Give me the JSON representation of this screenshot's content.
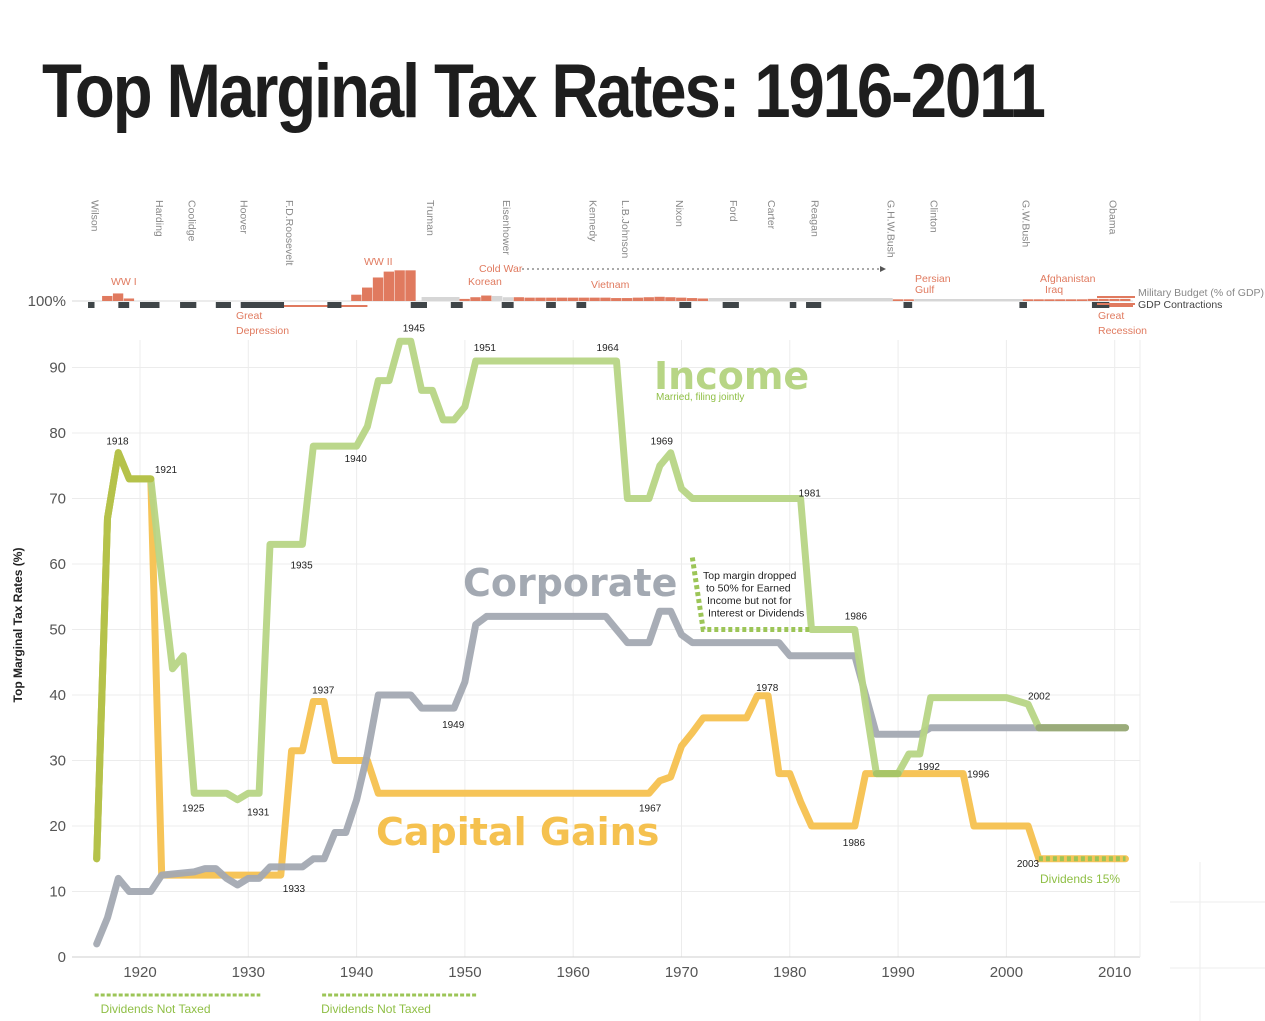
{
  "title": "Top Marginal Tax Rates: 1916-2011",
  "colors": {
    "income": "#b7d585",
    "income_dark": "#a5c55a",
    "corporate": "#a3a9b2",
    "capital_gains": "#f5c14f",
    "military": "#e07a5f",
    "military_gray": "#d6d6d6",
    "gdp": "#3f4548",
    "dividends": "#9cc557"
  },
  "chart_data": {
    "type": "line",
    "title": "Top Marginal Tax Rates: 1916-2011",
    "xlabel": "",
    "ylabel": "Top Marginal Tax Rates (%)",
    "xlim": [
      1915,
      2012
    ],
    "ylim": [
      0,
      100
    ],
    "x_ticks": [
      1920,
      1930,
      1940,
      1950,
      1960,
      1970,
      1980,
      1990,
      2000,
      2010
    ],
    "y_ticks": [
      0,
      10,
      20,
      30,
      40,
      50,
      60,
      70,
      80,
      90
    ],
    "y_top_label": "100%",
    "series": [
      {
        "name": "Income",
        "subtitle": "Married, filing jointly",
        "points": [
          [
            1916,
            15
          ],
          [
            1917,
            67
          ],
          [
            1918,
            77
          ],
          [
            1919,
            73
          ],
          [
            1921,
            73
          ],
          [
            1922,
            58
          ],
          [
            1923,
            44
          ],
          [
            1924,
            46
          ],
          [
            1925,
            25
          ],
          [
            1928,
            25
          ],
          [
            1929,
            24
          ],
          [
            1930,
            25
          ],
          [
            1931,
            25
          ],
          [
            1932,
            63
          ],
          [
            1935,
            63
          ],
          [
            1936,
            78
          ],
          [
            1940,
            78
          ],
          [
            1941,
            81
          ],
          [
            1942,
            88
          ],
          [
            1943,
            88
          ],
          [
            1944,
            94
          ],
          [
            1945,
            94
          ],
          [
            1946,
            86.5
          ],
          [
            1947,
            86.5
          ],
          [
            1948,
            82
          ],
          [
            1949,
            82
          ],
          [
            1950,
            84
          ],
          [
            1951,
            91
          ],
          [
            1964,
            91
          ],
          [
            1965,
            70
          ],
          [
            1967,
            70
          ],
          [
            1968,
            75
          ],
          [
            1969,
            77
          ],
          [
            1970,
            71.5
          ],
          [
            1971,
            70
          ],
          [
            1981,
            70
          ],
          [
            1982,
            50
          ],
          [
            1986,
            50
          ],
          [
            1987,
            38.5
          ],
          [
            1988,
            28
          ],
          [
            1990,
            28
          ],
          [
            1991,
            31
          ],
          [
            1992,
            31
          ],
          [
            1993,
            39.6
          ],
          [
            2000,
            39.6
          ],
          [
            2001,
            39.1
          ],
          [
            2002,
            38.6
          ],
          [
            2003,
            35
          ],
          [
            2011,
            35
          ]
        ]
      },
      {
        "name": "Corporate",
        "points": [
          [
            1916,
            2
          ],
          [
            1917,
            6
          ],
          [
            1918,
            12
          ],
          [
            1919,
            10
          ],
          [
            1921,
            10
          ],
          [
            1922,
            12.5
          ],
          [
            1925,
            13
          ],
          [
            1926,
            13.5
          ],
          [
            1927,
            13.5
          ],
          [
            1928,
            12
          ],
          [
            1929,
            11
          ],
          [
            1930,
            12
          ],
          [
            1931,
            12
          ],
          [
            1932,
            13.75
          ],
          [
            1935,
            13.75
          ],
          [
            1936,
            15
          ],
          [
            1937,
            15
          ],
          [
            1938,
            19
          ],
          [
            1939,
            19
          ],
          [
            1940,
            24
          ],
          [
            1941,
            31
          ],
          [
            1942,
            40
          ],
          [
            1945,
            40
          ],
          [
            1946,
            38
          ],
          [
            1949,
            38
          ],
          [
            1950,
            42
          ],
          [
            1951,
            50.75
          ],
          [
            1952,
            52
          ],
          [
            1963,
            52
          ],
          [
            1964,
            50
          ],
          [
            1965,
            48
          ],
          [
            1967,
            48
          ],
          [
            1968,
            52.8
          ],
          [
            1969,
            52.8
          ],
          [
            1970,
            49.2
          ],
          [
            1971,
            48
          ],
          [
            1979,
            48
          ],
          [
            1980,
            46
          ],
          [
            1986,
            46
          ],
          [
            1987,
            40
          ],
          [
            1988,
            34
          ],
          [
            1992,
            34
          ],
          [
            1993,
            35
          ],
          [
            2011,
            35
          ]
        ]
      },
      {
        "name": "Capital Gains",
        "points": [
          [
            1916,
            15
          ],
          [
            1917,
            67
          ],
          [
            1918,
            77
          ],
          [
            1919,
            73
          ],
          [
            1921,
            73
          ],
          [
            1922,
            12.5
          ],
          [
            1933,
            12.5
          ],
          [
            1934,
            31.5
          ],
          [
            1935,
            31.5
          ],
          [
            1936,
            39
          ],
          [
            1937,
            39
          ],
          [
            1938,
            30
          ],
          [
            1941,
            30
          ],
          [
            1942,
            25
          ],
          [
            1967,
            25
          ],
          [
            1968,
            26.9
          ],
          [
            1969,
            27.5
          ],
          [
            1970,
            32.2
          ],
          [
            1971,
            34.25
          ],
          [
            1972,
            36.5
          ],
          [
            1976,
            36.5
          ],
          [
            1977,
            39.9
          ],
          [
            1978,
            39.9
          ],
          [
            1979,
            28
          ],
          [
            1980,
            28
          ],
          [
            1981,
            23.7
          ],
          [
            1982,
            20
          ],
          [
            1986,
            20
          ],
          [
            1987,
            28
          ],
          [
            1996,
            28
          ],
          [
            1997,
            20
          ],
          [
            2002,
            20
          ],
          [
            2003,
            15
          ],
          [
            2011,
            15
          ]
        ]
      }
    ],
    "year_labels": [
      {
        "text": "1918",
        "x": 1918,
        "y": 77
      },
      {
        "text": "1921",
        "x": 1921,
        "y": 73
      },
      {
        "text": "1925",
        "x": 1925,
        "y": 25
      },
      {
        "text": "1931",
        "x": 1931,
        "y": 25
      },
      {
        "text": "1933",
        "x": 1933,
        "y": 13
      },
      {
        "text": "1935",
        "x": 1935,
        "y": 63
      },
      {
        "text": "1937",
        "x": 1937,
        "y": 39
      },
      {
        "text": "1940",
        "x": 1940,
        "y": 78
      },
      {
        "text": "1945",
        "x": 1945,
        "y": 94
      },
      {
        "text": "1949",
        "x": 1949,
        "y": 38
      },
      {
        "text": "1951",
        "x": 1951,
        "y": 91
      },
      {
        "text": "1964",
        "x": 1964,
        "y": 91
      },
      {
        "text": "1967",
        "x": 1967,
        "y": 25
      },
      {
        "text": "1969",
        "x": 1969,
        "y": 77
      },
      {
        "text": "1978",
        "x": 1978,
        "y": 40
      },
      {
        "text": "1981",
        "x": 1981,
        "y": 70
      },
      {
        "text": "1986",
        "x": 1986,
        "y": 50
      },
      {
        "text": "1986",
        "x": 1986,
        "y": 20
      },
      {
        "text": "1992",
        "x": 1992,
        "y": 31
      },
      {
        "text": "1996",
        "x": 1996,
        "y": 28
      },
      {
        "text": "2002",
        "x": 2002,
        "y": 39
      },
      {
        "text": "2003",
        "x": 2003,
        "y": 15
      }
    ],
    "annotations": {
      "income_label": "Income",
      "income_sub": "Married, filing jointly",
      "corporate_label": "Corporate",
      "capital_gains_label": "Capital Gains",
      "earned_note": [
        "Top margin dropped",
        "to 50% for Earned",
        "Income but not for",
        "Interest or Dividends"
      ],
      "dividends_15": "Dividends 15%",
      "dividends_not_taxed": "Dividends Not Taxed",
      "dividends_not_taxed_ranges": [
        [
          1916,
          1930
        ],
        [
          1937,
          1950
        ]
      ]
    },
    "presidents": [
      {
        "name": "Wilson",
        "year": 1915.5
      },
      {
        "name": "Harding",
        "year": 1921.5
      },
      {
        "name": "Coolidge",
        "year": 1924.5
      },
      {
        "name": "Hoover",
        "year": 1929.3
      },
      {
        "name": "F.D.Roosevelt",
        "year": 1933.5
      },
      {
        "name": "Truman",
        "year": 1946.5
      },
      {
        "name": "Eisenhower",
        "year": 1953.5
      },
      {
        "name": "Kennedy",
        "year": 1961.5
      },
      {
        "name": "L.B.Johnson",
        "year": 1964.5
      },
      {
        "name": "Nixon",
        "year": 1969.5
      },
      {
        "name": "Ford",
        "year": 1974.5
      },
      {
        "name": "Carter",
        "year": 1978
      },
      {
        "name": "Reagan",
        "year": 1982
      },
      {
        "name": "G.H.W.Bush",
        "year": 1989
      },
      {
        "name": "Clinton",
        "year": 1993
      },
      {
        "name": "G.W.Bush",
        "year": 2001.5
      },
      {
        "name": "Obama",
        "year": 2009.5
      }
    ],
    "military_budget": [
      {
        "year": 1917,
        "value": 1.2
      },
      {
        "year": 1918,
        "value": 1.8
      },
      {
        "year": 1919,
        "value": 0.6
      },
      {
        "year": 1940,
        "value": 1.5
      },
      {
        "year": 1941,
        "value": 3.2
      },
      {
        "year": 1942,
        "value": 5.6
      },
      {
        "year": 1943,
        "value": 7.0
      },
      {
        "year": 1944,
        "value": 7.3
      },
      {
        "year": 1945,
        "value": 7.3
      },
      {
        "year": 1950,
        "value": 0.5
      },
      {
        "year": 1951,
        "value": 0.9
      },
      {
        "year": 1952,
        "value": 1.3
      },
      {
        "year": 1953,
        "value": 1.2
      },
      {
        "year": 1954,
        "value": 0.9
      },
      {
        "year": 1955,
        "value": 0.9
      },
      {
        "year": 1956,
        "value": 0.8
      },
      {
        "year": 1957,
        "value": 0.8
      },
      {
        "year": 1958,
        "value": 0.8
      },
      {
        "year": 1959,
        "value": 0.8
      },
      {
        "year": 1960,
        "value": 0.8
      },
      {
        "year": 1961,
        "value": 0.8
      },
      {
        "year": 1962,
        "value": 0.8
      },
      {
        "year": 1963,
        "value": 0.8
      },
      {
        "year": 1964,
        "value": 0.7
      },
      {
        "year": 1965,
        "value": 0.7
      },
      {
        "year": 1966,
        "value": 0.8
      },
      {
        "year": 1967,
        "value": 0.9
      },
      {
        "year": 1968,
        "value": 1.0
      },
      {
        "year": 1969,
        "value": 0.9
      },
      {
        "year": 1970,
        "value": 0.8
      },
      {
        "year": 1971,
        "value": 0.7
      },
      {
        "year": 1972,
        "value": 0.6
      },
      {
        "year": 1990,
        "value": 0.4
      },
      {
        "year": 1991,
        "value": 0.4
      },
      {
        "year": 2002,
        "value": 0.4
      },
      {
        "year": 2003,
        "value": 0.4
      },
      {
        "year": 2004,
        "value": 0.4
      },
      {
        "year": 2005,
        "value": 0.4
      },
      {
        "year": 2006,
        "value": 0.4
      },
      {
        "year": 2007,
        "value": 0.4
      },
      {
        "year": 2008,
        "value": 0.5
      },
      {
        "year": 2009,
        "value": 0.5
      },
      {
        "year": 2010,
        "value": 0.5
      },
      {
        "year": 2011,
        "value": 0.5
      }
    ],
    "gdp_contractions": [
      {
        "start": 1915.2,
        "end": 1915.8
      },
      {
        "start": 1918,
        "end": 1919
      },
      {
        "start": 1920,
        "end": 1921.8
      },
      {
        "start": 1923.7,
        "end": 1925.2
      },
      {
        "start": 1927,
        "end": 1928.4
      },
      {
        "start": 1929.3,
        "end": 1933.3
      },
      {
        "start": 1937.3,
        "end": 1938.6
      },
      {
        "start": 1945,
        "end": 1946.5
      },
      {
        "start": 1948.7,
        "end": 1949.8
      },
      {
        "start": 1953.4,
        "end": 1954.5
      },
      {
        "start": 1957.5,
        "end": 1958.4
      },
      {
        "start": 1960.3,
        "end": 1961.2
      },
      {
        "start": 1969.8,
        "end": 1970.9
      },
      {
        "start": 1973.8,
        "end": 1975.3
      },
      {
        "start": 1980,
        "end": 1980.6
      },
      {
        "start": 1981.5,
        "end": 1982.9
      },
      {
        "start": 1990.5,
        "end": 1991.3
      },
      {
        "start": 2001.2,
        "end": 2001.9
      },
      {
        "start": 2007.9,
        "end": 2009.5
      }
    ],
    "top_strip_labels": {
      "wwi": "WW I",
      "wwii": "WW II",
      "cold_war": "Cold War",
      "korean": "Korean",
      "vietnam": "Vietnam",
      "persian_gulf": [
        "Persian",
        "Gulf"
      ],
      "afghanistan_iraq": [
        "Afghanistan",
        "Iraq"
      ],
      "great_depression": [
        "Great",
        "Depression"
      ],
      "great_recession": [
        "Great",
        "Recession"
      ],
      "military_legend": "Military Budget (% of GDP)",
      "gdp_legend": "GDP Contractions"
    }
  }
}
